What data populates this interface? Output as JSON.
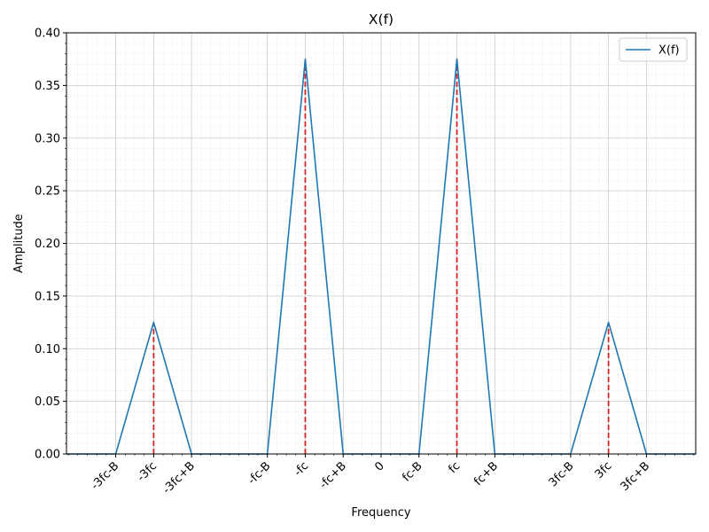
{
  "chart_data": {
    "type": "line",
    "title": "X(f)",
    "xlabel": "Frequency",
    "ylabel": "Amplitude",
    "ylim": [
      0,
      0.4
    ],
    "xlim": [
      -8.3,
      8.3
    ],
    "yticks": [
      "0.00",
      "0.05",
      "0.10",
      "0.15",
      "0.20",
      "0.25",
      "0.30",
      "0.35",
      "0.40"
    ],
    "ytick_values": [
      0,
      0.05,
      0.1,
      0.15,
      0.2,
      0.25,
      0.3,
      0.35,
      0.4
    ],
    "xticks": [
      {
        "label": "-3fc-B",
        "value": -7
      },
      {
        "label": "-3fc",
        "value": -6
      },
      {
        "label": "-3fc+B",
        "value": -5
      },
      {
        "label": "-fc-B",
        "value": -3
      },
      {
        "label": "-fc",
        "value": -2
      },
      {
        "label": "-fc+B",
        "value": -1
      },
      {
        "label": "0",
        "value": 0
      },
      {
        "label": "fc-B",
        "value": 1
      },
      {
        "label": "fc",
        "value": 2
      },
      {
        "label": "fc+B",
        "value": 3
      },
      {
        "label": "3fc-B",
        "value": 5
      },
      {
        "label": "3fc",
        "value": 6
      },
      {
        "label": "3fc+B",
        "value": 7
      }
    ],
    "grid": true,
    "minor_grid": true,
    "legend": {
      "position": "top-right",
      "entries": [
        "X(f)"
      ]
    },
    "series": [
      {
        "name": "X(f)",
        "color": "#1f77b4",
        "x": [
          -8.3,
          -7,
          -6,
          -5,
          -3,
          -2,
          -1,
          1,
          2,
          3,
          5,
          6,
          7,
          8.3
        ],
        "y": [
          0,
          0,
          0.125,
          0,
          0,
          0.375,
          0,
          0,
          0.375,
          0,
          0,
          0.125,
          0,
          0
        ]
      }
    ],
    "stems": {
      "color": "#d62728",
      "style": "dashed",
      "x": [
        -6,
        -2,
        2,
        6
      ],
      "y": [
        0.125,
        0.375,
        0.375,
        0.125
      ]
    }
  }
}
